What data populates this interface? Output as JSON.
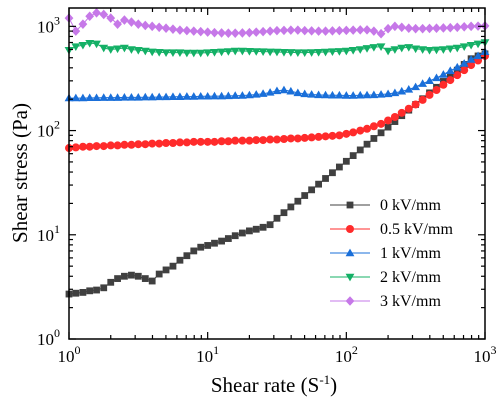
{
  "chart_data": {
    "type": "scatter",
    "title": "",
    "xlabel": "Shear rate (S",
    "xlabel_sup": "-1",
    "xlabel_end": ")",
    "ylabel": "Shear stress (Pa)",
    "xscale": "log",
    "yscale": "log",
    "xlim": [
      1,
      1000
    ],
    "ylim": [
      1,
      1500
    ],
    "grid": false,
    "legend_position": "bottom-right",
    "x_ticks": [
      {
        "value": 1,
        "base": "10",
        "exp": "0"
      },
      {
        "value": 10,
        "base": "10",
        "exp": "1"
      },
      {
        "value": 100,
        "base": "10",
        "exp": "2"
      },
      {
        "value": 1000,
        "base": "10",
        "exp": "3"
      }
    ],
    "y_ticks": [
      {
        "value": 1,
        "base": "10",
        "exp": "0"
      },
      {
        "value": 10,
        "base": "10",
        "exp": "1"
      },
      {
        "value": 100,
        "base": "10",
        "exp": "2"
      },
      {
        "value": 1000,
        "base": "10",
        "exp": "3"
      }
    ],
    "series": [
      {
        "name": "0 kV/mm",
        "marker": "square",
        "color": "#404040",
        "points": [
          [
            1,
            2.7
          ],
          [
            1.12,
            2.75
          ],
          [
            1.26,
            2.8
          ],
          [
            1.41,
            2.9
          ],
          [
            1.58,
            2.95
          ],
          [
            1.78,
            3.1
          ],
          [
            2,
            3.5
          ],
          [
            2.24,
            3.8
          ],
          [
            2.51,
            4.0
          ],
          [
            2.82,
            4.1
          ],
          [
            3.16,
            4.0
          ],
          [
            3.55,
            3.8
          ],
          [
            3.98,
            3.6
          ],
          [
            4.47,
            4.2
          ],
          [
            5.01,
            4.6
          ],
          [
            5.62,
            5.0
          ],
          [
            6.31,
            5.7
          ],
          [
            7.08,
            6.3
          ],
          [
            7.94,
            7.0
          ],
          [
            8.91,
            7.6
          ],
          [
            10,
            7.9
          ],
          [
            11.2,
            8.3
          ],
          [
            12.6,
            8.7
          ],
          [
            14.1,
            9.2
          ],
          [
            15.8,
            9.8
          ],
          [
            17.8,
            10.4
          ],
          [
            20,
            10.9
          ],
          [
            22.4,
            11.3
          ],
          [
            25.1,
            11.8
          ],
          [
            28.2,
            12.5
          ],
          [
            31.6,
            14.4
          ],
          [
            35.5,
            16.3
          ],
          [
            39.8,
            18.5
          ],
          [
            44.7,
            21.0
          ],
          [
            50.1,
            23.8
          ],
          [
            56.2,
            27.0
          ],
          [
            63.1,
            30.6
          ],
          [
            70.8,
            34.7
          ],
          [
            79.4,
            39.4
          ],
          [
            89.1,
            44.7
          ],
          [
            100,
            50.7
          ],
          [
            112,
            57.5
          ],
          [
            126,
            65.2
          ],
          [
            141,
            74.0
          ],
          [
            158,
            84.0
          ],
          [
            178,
            95.2
          ],
          [
            200,
            108
          ],
          [
            224,
            122
          ],
          [
            251,
            139
          ],
          [
            282,
            157
          ],
          [
            316,
            178
          ],
          [
            355,
            202
          ],
          [
            398,
            230
          ],
          [
            447,
            260
          ],
          [
            501,
            296
          ],
          [
            562,
            335
          ],
          [
            631,
            380
          ],
          [
            708,
            431
          ],
          [
            794,
            489
          ],
          [
            891,
            520
          ],
          [
            1000,
            545
          ]
        ]
      },
      {
        "name": "0.5 kV/mm",
        "marker": "circle",
        "color": "#ff2b2b",
        "points": [
          [
            1,
            68
          ],
          [
            1.12,
            69
          ],
          [
            1.26,
            70
          ],
          [
            1.41,
            70
          ],
          [
            1.58,
            71
          ],
          [
            1.78,
            71
          ],
          [
            2,
            72
          ],
          [
            2.24,
            72
          ],
          [
            2.51,
            73
          ],
          [
            2.82,
            73
          ],
          [
            3.16,
            74
          ],
          [
            3.55,
            74
          ],
          [
            3.98,
            75
          ],
          [
            4.47,
            75
          ],
          [
            5.01,
            76
          ],
          [
            5.62,
            76
          ],
          [
            6.31,
            77
          ],
          [
            7.08,
            77
          ],
          [
            7.94,
            78
          ],
          [
            8.91,
            78
          ],
          [
            10,
            78
          ],
          [
            11.2,
            78
          ],
          [
            12.6,
            79
          ],
          [
            14.1,
            79
          ],
          [
            15.8,
            80
          ],
          [
            17.8,
            80
          ],
          [
            20,
            80
          ],
          [
            22.4,
            81
          ],
          [
            25.1,
            81
          ],
          [
            28.2,
            82
          ],
          [
            31.6,
            82
          ],
          [
            35.5,
            83
          ],
          [
            39.8,
            84
          ],
          [
            44.7,
            84
          ],
          [
            50.1,
            85
          ],
          [
            56.2,
            86
          ],
          [
            63.1,
            87
          ],
          [
            70.8,
            88
          ],
          [
            79.4,
            89
          ],
          [
            89.1,
            90
          ],
          [
            100,
            93
          ],
          [
            112,
            96
          ],
          [
            126,
            100
          ],
          [
            141,
            104
          ],
          [
            158,
            110
          ],
          [
            178,
            116
          ],
          [
            200,
            125
          ],
          [
            224,
            135
          ],
          [
            251,
            148
          ],
          [
            282,
            162
          ],
          [
            316,
            178
          ],
          [
            355,
            197
          ],
          [
            398,
            220
          ],
          [
            447,
            245
          ],
          [
            501,
            275
          ],
          [
            562,
            305
          ],
          [
            631,
            340
          ],
          [
            708,
            380
          ],
          [
            794,
            425
          ],
          [
            891,
            470
          ],
          [
            1000,
            520
          ]
        ]
      },
      {
        "name": "1 kV/mm",
        "marker": "triangle-up",
        "color": "#1a6fd9",
        "points": [
          [
            1,
            205
          ],
          [
            1.12,
            205
          ],
          [
            1.26,
            205
          ],
          [
            1.41,
            206
          ],
          [
            1.58,
            206
          ],
          [
            1.78,
            207
          ],
          [
            2,
            207
          ],
          [
            2.24,
            207
          ],
          [
            2.51,
            208
          ],
          [
            2.82,
            208
          ],
          [
            3.16,
            208
          ],
          [
            3.55,
            209
          ],
          [
            3.98,
            209
          ],
          [
            4.47,
            210
          ],
          [
            5.01,
            210
          ],
          [
            5.62,
            211
          ],
          [
            6.31,
            211
          ],
          [
            7.08,
            212
          ],
          [
            7.94,
            212
          ],
          [
            8.91,
            213
          ],
          [
            10,
            213
          ],
          [
            11.2,
            214
          ],
          [
            12.6,
            214
          ],
          [
            14.1,
            215
          ],
          [
            15.8,
            216
          ],
          [
            17.8,
            217
          ],
          [
            20,
            219
          ],
          [
            22.4,
            222
          ],
          [
            25.1,
            226
          ],
          [
            28.2,
            232
          ],
          [
            31.6,
            240
          ],
          [
            35.5,
            245
          ],
          [
            39.8,
            238
          ],
          [
            44.7,
            230
          ],
          [
            50.1,
            225
          ],
          [
            56.2,
            222
          ],
          [
            63.1,
            220
          ],
          [
            70.8,
            219
          ],
          [
            79.4,
            218
          ],
          [
            89.1,
            218
          ],
          [
            100,
            217
          ],
          [
            112,
            217
          ],
          [
            126,
            218
          ],
          [
            141,
            219
          ],
          [
            158,
            220
          ],
          [
            178,
            222
          ],
          [
            200,
            225
          ],
          [
            224,
            230
          ],
          [
            251,
            238
          ],
          [
            282,
            248
          ],
          [
            316,
            262
          ],
          [
            355,
            282
          ],
          [
            398,
            300
          ],
          [
            447,
            320
          ],
          [
            501,
            345
          ],
          [
            562,
            375
          ],
          [
            631,
            405
          ],
          [
            708,
            440
          ],
          [
            794,
            480
          ],
          [
            891,
            520
          ],
          [
            1000,
            570
          ]
        ]
      },
      {
        "name": "2 kV/mm",
        "marker": "triangle-down",
        "color": "#14b066",
        "points": [
          [
            1,
            590
          ],
          [
            1.12,
            640
          ],
          [
            1.26,
            660
          ],
          [
            1.41,
            690
          ],
          [
            1.58,
            680
          ],
          [
            1.78,
            620
          ],
          [
            2,
            600
          ],
          [
            2.24,
            610
          ],
          [
            2.51,
            620
          ],
          [
            2.82,
            600
          ],
          [
            3.16,
            590
          ],
          [
            3.55,
            580
          ],
          [
            3.98,
            570
          ],
          [
            4.47,
            565
          ],
          [
            5.01,
            560
          ],
          [
            5.62,
            560
          ],
          [
            6.31,
            560
          ],
          [
            7.08,
            555
          ],
          [
            7.94,
            555
          ],
          [
            8.91,
            555
          ],
          [
            10,
            560
          ],
          [
            11.2,
            565
          ],
          [
            12.6,
            570
          ],
          [
            14.1,
            575
          ],
          [
            15.8,
            580
          ],
          [
            17.8,
            580
          ],
          [
            20,
            578
          ],
          [
            22.4,
            575
          ],
          [
            25.1,
            572
          ],
          [
            28.2,
            570
          ],
          [
            31.6,
            568
          ],
          [
            35.5,
            565
          ],
          [
            39.8,
            563
          ],
          [
            44.7,
            560
          ],
          [
            50.1,
            560
          ],
          [
            56.2,
            562
          ],
          [
            63.1,
            565
          ],
          [
            70.8,
            568
          ],
          [
            79.4,
            572
          ],
          [
            89.1,
            576
          ],
          [
            100,
            580
          ],
          [
            112,
            590
          ],
          [
            126,
            600
          ],
          [
            141,
            615
          ],
          [
            158,
            630
          ],
          [
            178,
            640
          ],
          [
            200,
            580
          ],
          [
            224,
            600
          ],
          [
            251,
            620
          ],
          [
            282,
            630
          ],
          [
            316,
            610
          ],
          [
            355,
            600
          ],
          [
            398,
            590
          ],
          [
            447,
            595
          ],
          [
            501,
            600
          ],
          [
            562,
            610
          ],
          [
            631,
            620
          ],
          [
            708,
            640
          ],
          [
            794,
            660
          ],
          [
            891,
            680
          ],
          [
            1000,
            700
          ]
        ]
      },
      {
        "name": "3 kV/mm",
        "marker": "diamond",
        "color": "#c678e8",
        "points": [
          [
            1,
            1200
          ],
          [
            1.12,
            900
          ],
          [
            1.26,
            1050
          ],
          [
            1.41,
            1250
          ],
          [
            1.58,
            1350
          ],
          [
            1.78,
            1300
          ],
          [
            2,
            1200
          ],
          [
            2.24,
            1050
          ],
          [
            2.51,
            1150
          ],
          [
            2.82,
            1100
          ],
          [
            3.16,
            1050
          ],
          [
            3.55,
            1020
          ],
          [
            3.98,
            1000
          ],
          [
            4.47,
            980
          ],
          [
            5.01,
            960
          ],
          [
            5.62,
            940
          ],
          [
            6.31,
            920
          ],
          [
            7.08,
            910
          ],
          [
            7.94,
            900
          ],
          [
            8.91,
            890
          ],
          [
            10,
            880
          ],
          [
            11.2,
            870
          ],
          [
            12.6,
            865
          ],
          [
            14.1,
            860
          ],
          [
            15.8,
            860
          ],
          [
            17.8,
            865
          ],
          [
            20,
            870
          ],
          [
            22.4,
            880
          ],
          [
            25.1,
            890
          ],
          [
            28.2,
            900
          ],
          [
            31.6,
            910
          ],
          [
            35.5,
            915
          ],
          [
            39.8,
            920
          ],
          [
            44.7,
            920
          ],
          [
            50.1,
            910
          ],
          [
            56.2,
            905
          ],
          [
            63.1,
            900
          ],
          [
            70.8,
            900
          ],
          [
            79.4,
            905
          ],
          [
            89.1,
            910
          ],
          [
            100,
            915
          ],
          [
            112,
            920
          ],
          [
            126,
            925
          ],
          [
            141,
            925
          ],
          [
            158,
            900
          ],
          [
            178,
            850
          ],
          [
            200,
            950
          ],
          [
            224,
            1000
          ],
          [
            251,
            980
          ],
          [
            282,
            960
          ],
          [
            316,
            950
          ],
          [
            355,
            950
          ],
          [
            398,
            955
          ],
          [
            447,
            960
          ],
          [
            501,
            965
          ],
          [
            562,
            970
          ],
          [
            631,
            980
          ],
          [
            708,
            990
          ],
          [
            794,
            1000
          ],
          [
            891,
            1005
          ],
          [
            1000,
            1010
          ]
        ]
      }
    ]
  }
}
